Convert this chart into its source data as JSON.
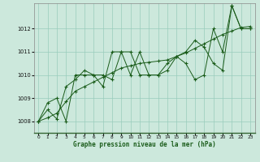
{
  "xlabel": "Graphe pression niveau de la mer (hPa)",
  "background_color": "#cce8dc",
  "line_color": "#1a5c1a",
  "grid_color": "#99ccbb",
  "axis_color": "#336633",
  "xlim": [
    -0.5,
    23.5
  ],
  "ylim": [
    1007.5,
    1013.1
  ],
  "yticks": [
    1008,
    1009,
    1010,
    1011,
    1012
  ],
  "xticks": [
    0,
    1,
    2,
    3,
    4,
    5,
    6,
    7,
    8,
    9,
    10,
    11,
    12,
    13,
    14,
    15,
    16,
    17,
    18,
    19,
    20,
    21,
    22,
    23
  ],
  "series": [
    [
      1008.0,
      1008.8,
      1009.0,
      1008.0,
      1010.0,
      1010.0,
      1010.0,
      1010.0,
      1009.8,
      1011.0,
      1010.0,
      1011.0,
      1010.0,
      1010.0,
      1010.5,
      1010.8,
      1010.5,
      1009.8,
      1010.0,
      1012.0,
      1011.0,
      1013.0,
      1012.0,
      1012.0
    ],
    [
      1008.0,
      1008.5,
      1008.1,
      1009.5,
      1009.8,
      1010.2,
      1010.0,
      1009.5,
      1011.0,
      1011.0,
      1011.0,
      1010.0,
      1010.0,
      1010.0,
      1010.2,
      1010.8,
      1011.0,
      1011.5,
      1011.2,
      1010.5,
      1010.2,
      1013.0,
      1012.0,
      1012.0
    ],
    [
      1008.0,
      1008.15,
      1008.35,
      1008.85,
      1009.3,
      1009.5,
      1009.7,
      1009.9,
      1010.1,
      1010.3,
      1010.4,
      1010.5,
      1010.55,
      1010.6,
      1010.65,
      1010.8,
      1010.95,
      1011.15,
      1011.35,
      1011.55,
      1011.75,
      1011.9,
      1012.05,
      1012.1
    ]
  ],
  "figsize": [
    3.2,
    2.0
  ],
  "dpi": 100
}
